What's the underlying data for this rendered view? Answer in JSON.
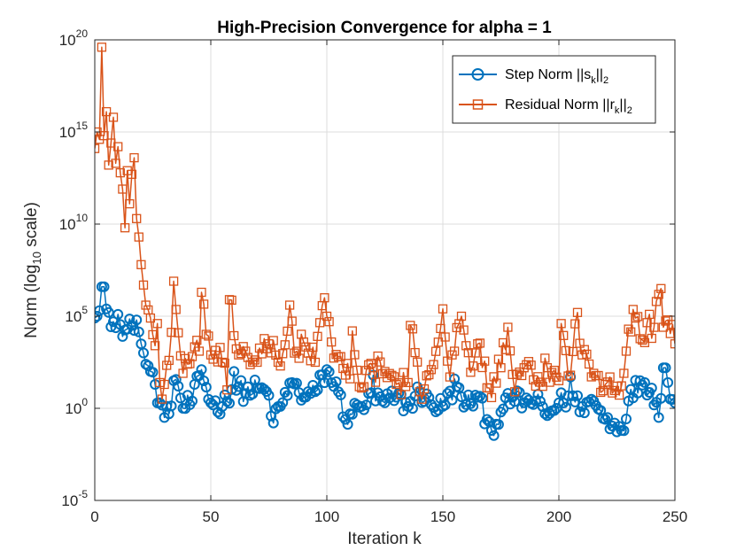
{
  "chart_data": {
    "type": "line",
    "title": "High-Precision Convergence for alpha = 1",
    "xlabel": "Iteration k",
    "ylabel": "Norm (log10 scale)",
    "ylabel_parts": {
      "pre": "Norm (log",
      "sub": "10",
      "post": " scale)"
    },
    "xscale": "linear",
    "yscale": "log",
    "xlim": [
      0,
      250
    ],
    "ylim_exponent": [
      -5,
      20
    ],
    "x_ticks": [
      0,
      50,
      100,
      150,
      200,
      250
    ],
    "x_tick_labels": [
      "0",
      "50",
      "100",
      "150",
      "200",
      "250"
    ],
    "y_tick_exponents": [
      -5,
      0,
      5,
      10,
      15,
      20
    ],
    "y_tick_labels": [
      {
        "base": "10",
        "exp": "-5"
      },
      {
        "base": "10",
        "exp": "0"
      },
      {
        "base": "10",
        "exp": "5"
      },
      {
        "base": "10",
        "exp": "10"
      },
      {
        "base": "10",
        "exp": "15"
      },
      {
        "base": "10",
        "exp": "20"
      }
    ],
    "grid": true,
    "legend_position": "top-right",
    "series": [
      {
        "name": "Step Norm ||s_k||_2",
        "legend": {
          "pre": "Step Norm ||s",
          "sub": "k",
          "post": "||",
          "sub2": "2"
        },
        "color": "#0072BD",
        "marker": "circle",
        "anchors_log10": [
          [
            0,
            4.9
          ],
          [
            1,
            5.0
          ],
          [
            2,
            5.3
          ],
          [
            3,
            6.5
          ],
          [
            4,
            6.6
          ],
          [
            5,
            5.4
          ],
          [
            6,
            5.2
          ],
          [
            8,
            4.7
          ],
          [
            10,
            5.1
          ],
          [
            12,
            3.9
          ],
          [
            14,
            4.3
          ],
          [
            16,
            4.5
          ],
          [
            18,
            4.8
          ],
          [
            20,
            3.5
          ],
          [
            22,
            2.4
          ],
          [
            24,
            2.0
          ],
          [
            26,
            1.3
          ],
          [
            28,
            0.3
          ],
          [
            30,
            -0.5
          ],
          [
            32,
            -0.3
          ],
          [
            34,
            1.5
          ],
          [
            36,
            1.2
          ],
          [
            38,
            0.0
          ],
          [
            42,
            0.4
          ],
          [
            46,
            2.0
          ],
          [
            50,
            0.3
          ],
          [
            55,
            0.1
          ],
          [
            60,
            1.3
          ],
          [
            65,
            0.8
          ],
          [
            70,
            1.1
          ],
          [
            75,
            0.7
          ],
          [
            77,
            -0.8
          ],
          [
            80,
            0.1
          ],
          [
            85,
            1.4
          ],
          [
            90,
            0.6
          ],
          [
            95,
            0.9
          ],
          [
            100,
            2.0
          ],
          [
            105,
            0.9
          ],
          [
            108,
            -0.6
          ],
          [
            110,
            -0.3
          ],
          [
            115,
            0.1
          ],
          [
            120,
            0.6
          ],
          [
            125,
            0.3
          ],
          [
            130,
            0.6
          ],
          [
            135,
            0.1
          ],
          [
            140,
            0.9
          ],
          [
            145,
            0.2
          ],
          [
            150,
            0.1
          ],
          [
            155,
            1.1
          ],
          [
            160,
            0.2
          ],
          [
            165,
            0.6
          ],
          [
            169,
            -0.6
          ],
          [
            171,
            -1.2
          ],
          [
            175,
            -0.2
          ],
          [
            180,
            0.6
          ],
          [
            185,
            0.3
          ],
          [
            190,
            0.4
          ],
          [
            195,
            -0.4
          ],
          [
            200,
            0.3
          ],
          [
            205,
            0.6
          ],
          [
            210,
            0.1
          ],
          [
            215,
            0.4
          ],
          [
            220,
            -0.6
          ],
          [
            224,
            -0.8
          ],
          [
            227,
            -1.2
          ],
          [
            230,
            0.4
          ],
          [
            235,
            1.5
          ],
          [
            240,
            1.1
          ],
          [
            243,
            -0.5
          ],
          [
            245,
            2.2
          ],
          [
            247,
            1.4
          ],
          [
            250,
            0.3
          ]
        ],
        "jitter": 0.55,
        "spikes": [
          [
            3,
            6.6
          ],
          [
            4,
            6.6
          ],
          [
            46,
            2.1
          ],
          [
            60,
            2.0
          ],
          [
            100,
            2.1
          ],
          [
            120,
            1.8
          ],
          [
            155,
            1.6
          ],
          [
            205,
            1.7
          ],
          [
            246,
            2.2
          ]
        ]
      },
      {
        "name": "Residual Norm ||r_k||_2",
        "legend": {
          "pre": "Residual Norm ||r",
          "sub": "k",
          "post": "||",
          "sub2": "2"
        },
        "color": "#D95319",
        "marker": "square",
        "anchors_log10": [
          [
            0,
            14.1
          ],
          [
            1,
            15.0
          ],
          [
            2,
            14.6
          ],
          [
            3,
            19.6
          ],
          [
            4,
            14.8
          ],
          [
            5,
            16.1
          ],
          [
            6,
            13.2
          ],
          [
            7,
            14.4
          ],
          [
            8,
            15.8
          ],
          [
            9,
            13.3
          ],
          [
            10,
            14.2
          ],
          [
            12,
            11.9
          ],
          [
            13,
            9.8
          ],
          [
            14,
            12.9
          ],
          [
            15,
            11.1
          ],
          [
            16,
            12.7
          ],
          [
            17,
            13.6
          ],
          [
            18,
            10.3
          ],
          [
            19,
            9.3
          ],
          [
            20,
            7.8
          ],
          [
            22,
            5.6
          ],
          [
            24,
            4.9
          ],
          [
            26,
            3.4
          ],
          [
            27,
            4.6
          ],
          [
            28,
            1.4
          ],
          [
            29,
            0.5
          ],
          [
            30,
            1.3
          ],
          [
            32,
            2.6
          ],
          [
            34,
            6.9
          ],
          [
            36,
            4.1
          ],
          [
            38,
            1.9
          ],
          [
            40,
            2.4
          ],
          [
            45,
            3.1
          ],
          [
            46,
            6.3
          ],
          [
            50,
            2.9
          ],
          [
            55,
            2.5
          ],
          [
            57,
            1.0
          ],
          [
            58,
            5.9
          ],
          [
            62,
            2.9
          ],
          [
            65,
            3.1
          ],
          [
            70,
            2.5
          ],
          [
            75,
            3.5
          ],
          [
            80,
            2.3
          ],
          [
            84,
            5.6
          ],
          [
            86,
            3.0
          ],
          [
            90,
            3.6
          ],
          [
            95,
            2.5
          ],
          [
            99,
            6.0
          ],
          [
            100,
            5.0
          ],
          [
            102,
            3.6
          ],
          [
            105,
            2.8
          ],
          [
            110,
            1.6
          ],
          [
            111,
            4.2
          ],
          [
            115,
            1.1
          ],
          [
            120,
            2.2
          ],
          [
            125,
            2.0
          ],
          [
            130,
            1.3
          ],
          [
            135,
            1.4
          ],
          [
            136,
            4.5
          ],
          [
            140,
            0.9
          ],
          [
            145,
            2.1
          ],
          [
            150,
            5.4
          ],
          [
            153,
            1.7
          ],
          [
            155,
            3.1
          ],
          [
            158,
            5.0
          ],
          [
            160,
            3.4
          ],
          [
            163,
            2.3
          ],
          [
            165,
            3.5
          ],
          [
            170,
            1.1
          ],
          [
            175,
            2.2
          ],
          [
            178,
            4.4
          ],
          [
            181,
            0.9
          ],
          [
            185,
            2.2
          ],
          [
            190,
            1.2
          ],
          [
            195,
            2.2
          ],
          [
            200,
            1.5
          ],
          [
            201,
            4.6
          ],
          [
            205,
            1.8
          ],
          [
            208,
            5.2
          ],
          [
            210,
            2.9
          ],
          [
            215,
            1.9
          ],
          [
            220,
            1.3
          ],
          [
            222,
            1.7
          ],
          [
            225,
            1.2
          ],
          [
            228,
            1.9
          ],
          [
            230,
            4.3
          ],
          [
            233,
            4.9
          ],
          [
            236,
            3.7
          ],
          [
            239,
            5.1
          ],
          [
            240,
            3.8
          ],
          [
            242,
            5.8
          ],
          [
            244,
            6.5
          ],
          [
            245,
            4.4
          ],
          [
            247,
            4.8
          ],
          [
            250,
            3.5
          ]
        ],
        "jitter": 0.75,
        "spikes": [
          [
            3,
            19.6
          ],
          [
            34,
            6.9
          ],
          [
            46,
            6.3
          ],
          [
            58,
            5.9
          ],
          [
            84,
            5.6
          ],
          [
            99,
            6.0
          ],
          [
            150,
            5.4
          ],
          [
            208,
            5.2
          ],
          [
            244,
            6.5
          ]
        ]
      }
    ]
  }
}
